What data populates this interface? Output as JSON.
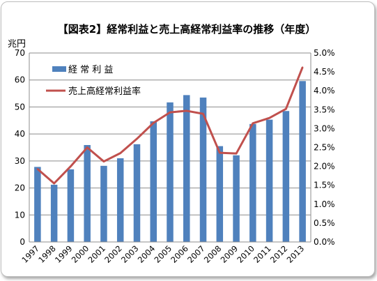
{
  "chart_data": {
    "type": "bar+line",
    "title": "【図表2】経常利益と売上高経常利益率の推移（年度）",
    "y_left_unit": "兆円",
    "categories": [
      "1997",
      "1998",
      "1999",
      "2000",
      "2001",
      "2002",
      "2003",
      "2004",
      "2005",
      "2006",
      "2007",
      "2008",
      "2009",
      "2010",
      "2011",
      "2012",
      "2013"
    ],
    "series": [
      {
        "name": "経 常 利 益",
        "type": "bar",
        "axis": "left",
        "color": "#4f81bd",
        "values": [
          27.8,
          21.2,
          26.9,
          35.9,
          28.2,
          31.0,
          36.2,
          44.7,
          51.7,
          54.4,
          53.5,
          35.5,
          32.1,
          43.7,
          45.3,
          48.5,
          59.6
        ]
      },
      {
        "name": "売上高経常利益率",
        "type": "line",
        "axis": "right",
        "color": "#c0504d",
        "values": [
          1.93,
          1.55,
          2.0,
          2.5,
          2.13,
          2.35,
          2.73,
          3.15,
          3.43,
          3.47,
          3.39,
          2.36,
          2.34,
          3.14,
          3.28,
          3.52,
          4.62
        ]
      }
    ],
    "y_left": {
      "min": 0,
      "max": 70,
      "step": 10,
      "tick_labels": [
        "0",
        "10",
        "20",
        "30",
        "40",
        "50",
        "60",
        "70"
      ]
    },
    "y_right": {
      "min": 0,
      "max": 5.0,
      "step": 0.5,
      "tick_labels": [
        "0.0%",
        "0.5%",
        "1.0%",
        "1.5%",
        "2.0%",
        "2.5%",
        "3.0%",
        "3.5%",
        "4.0%",
        "4.5%",
        "5.0%"
      ]
    },
    "grid": true,
    "legend_position": "top-left"
  }
}
